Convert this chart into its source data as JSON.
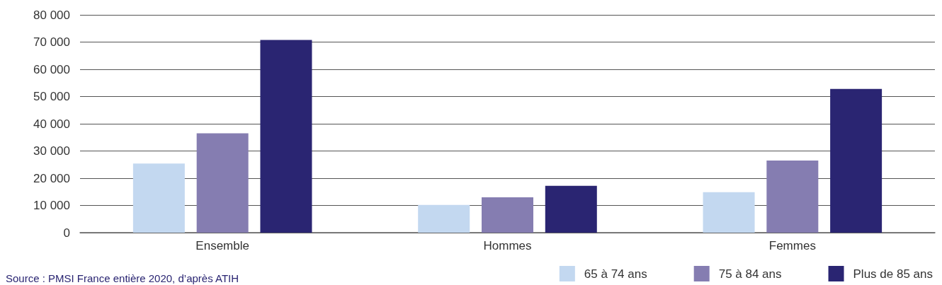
{
  "chart_data": {
    "type": "bar",
    "categories": [
      "Ensemble",
      "Hommes",
      "Femmes"
    ],
    "series": [
      {
        "name": "65 à 74 ans",
        "color": "#c3d8f0",
        "values": [
          25400,
          10200,
          14900
        ]
      },
      {
        "name": "75 à 84 ans",
        "color": "#857db1",
        "values": [
          36500,
          13000,
          26500
        ]
      },
      {
        "name": "Plus de 85 ans",
        "color": "#2a2572",
        "values": [
          70800,
          17200,
          52800
        ]
      }
    ],
    "ylim": [
      0,
      80000
    ],
    "yticks": [
      {
        "value": 0,
        "label": "0"
      },
      {
        "value": 10000,
        "label": "10 000"
      },
      {
        "value": 20000,
        "label": "20 000"
      },
      {
        "value": 30000,
        "label": "30 000"
      },
      {
        "value": 40000,
        "label": "40 000"
      },
      {
        "value": 50000,
        "label": "50 000"
      },
      {
        "value": 60000,
        "label": "60 000"
      },
      {
        "value": 70000,
        "label": "70 000"
      },
      {
        "value": 80000,
        "label": "80 000"
      }
    ],
    "grid": "y",
    "legend": "bottom right",
    "annotations": [
      "Source : PMSI France entière 2020, d’après ATIH"
    ]
  }
}
